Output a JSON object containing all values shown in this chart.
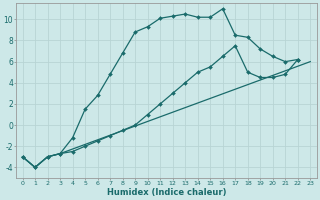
{
  "xlabel": "Humidex (Indice chaleur)",
  "background_color": "#cde8e8",
  "grid_color": "#b8d4d4",
  "line_color": "#1a6b6b",
  "xlim": [
    -0.5,
    23.5
  ],
  "ylim": [
    -5.0,
    11.5
  ],
  "xticks": [
    0,
    1,
    2,
    3,
    4,
    5,
    6,
    7,
    8,
    9,
    10,
    11,
    12,
    13,
    14,
    15,
    16,
    17,
    18,
    19,
    20,
    21,
    22,
    23
  ],
  "yticks": [
    -4,
    -2,
    0,
    2,
    4,
    6,
    8,
    10
  ],
  "line1_x": [
    0,
    1,
    2,
    3,
    4,
    5,
    6,
    7,
    8,
    9,
    10,
    11,
    12,
    13,
    14,
    15,
    16,
    17,
    18,
    19,
    20,
    21,
    22
  ],
  "line1_y": [
    -3.0,
    -4.0,
    -3.0,
    -2.7,
    -1.2,
    1.5,
    2.8,
    4.8,
    6.8,
    8.8,
    9.3,
    10.1,
    10.3,
    10.5,
    10.2,
    10.2,
    11.0,
    8.5,
    8.3,
    7.2,
    6.5,
    6.0,
    6.2
  ],
  "line2_x": [
    0,
    1,
    2,
    3,
    23
  ],
  "line2_y": [
    -3.0,
    -4.0,
    -3.0,
    -2.7,
    6.0
  ],
  "line3_x": [
    0,
    1,
    2,
    3,
    4,
    5,
    6,
    7,
    8,
    9,
    10,
    11,
    12,
    13,
    14,
    15,
    16,
    17,
    18,
    19,
    20,
    21,
    22
  ],
  "line3_y": [
    -3.0,
    -4.0,
    -3.0,
    -2.7,
    -2.5,
    -2.0,
    -1.5,
    -1.0,
    -0.5,
    0.0,
    1.0,
    2.0,
    3.0,
    4.0,
    5.0,
    5.5,
    6.5,
    7.5,
    5.0,
    4.5,
    4.5,
    4.8,
    6.2
  ],
  "xtick_fontsize": 4.5,
  "ytick_fontsize": 5.5,
  "xlabel_fontsize": 6.0,
  "marker_size": 2.0,
  "line_width": 0.9
}
